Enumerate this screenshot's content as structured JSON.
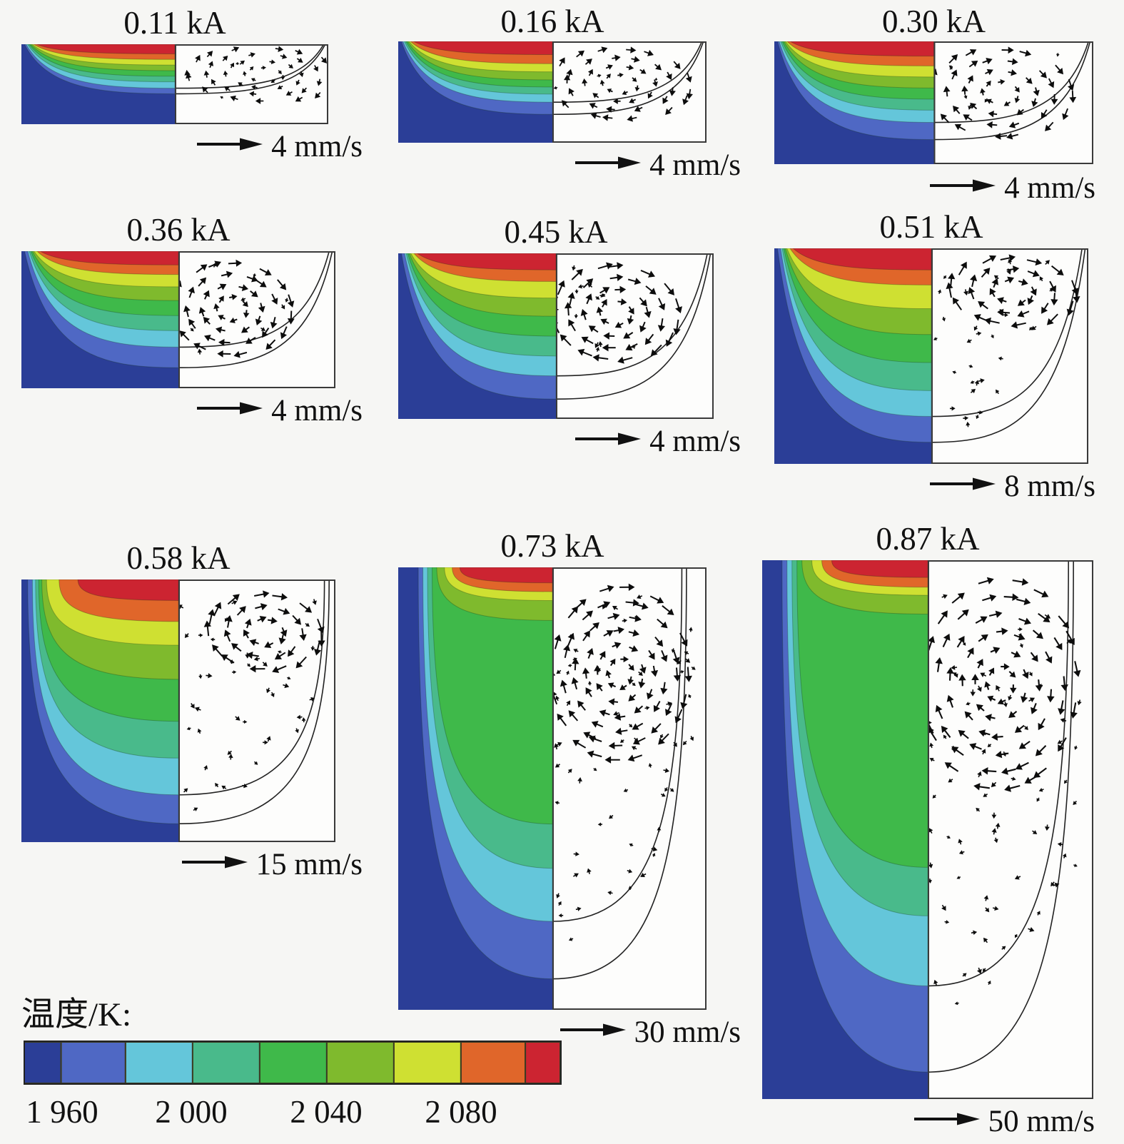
{
  "chart_data": {
    "type": "heatmap",
    "description": "Nine weld-pool panels: left half = temperature contour fill, right half = velocity vector field, each titled with arc current and annotated with a velocity reference arrow.",
    "panels": [
      {
        "label": "0.11 kA",
        "current_kA": 0.11,
        "scale_label": "4 mm/s",
        "velocity_scale_mm_s": 4
      },
      {
        "label": "0.16 kA",
        "current_kA": 0.16,
        "scale_label": "4 mm/s",
        "velocity_scale_mm_s": 4
      },
      {
        "label": "0.30 kA",
        "current_kA": 0.3,
        "scale_label": "4 mm/s",
        "velocity_scale_mm_s": 4
      },
      {
        "label": "0.36 kA",
        "current_kA": 0.36,
        "scale_label": "4 mm/s",
        "velocity_scale_mm_s": 4
      },
      {
        "label": "0.45 kA",
        "current_kA": 0.45,
        "scale_label": "4 mm/s",
        "velocity_scale_mm_s": 4
      },
      {
        "label": "0.51 kA",
        "current_kA": 0.51,
        "scale_label": "8 mm/s",
        "velocity_scale_mm_s": 8
      },
      {
        "label": "0.58 kA",
        "current_kA": 0.58,
        "scale_label": "15 mm/s",
        "velocity_scale_mm_s": 15
      },
      {
        "label": "0.73 kA",
        "current_kA": 0.73,
        "scale_label": "30 mm/s",
        "velocity_scale_mm_s": 30
      },
      {
        "label": "0.87 kA",
        "current_kA": 0.87,
        "scale_label": "50 mm/s",
        "velocity_scale_mm_s": 50
      }
    ],
    "colorbar": {
      "label": "温度/K:",
      "tick_labels": [
        "1 960",
        "2 000",
        "2 040",
        "2 080"
      ],
      "tick_values": [
        1960,
        2000,
        2040,
        2080
      ],
      "segment_step_K": 20,
      "segment_colors": [
        "#2b3e97",
        "#4f68c4",
        "#64c6da",
        "#49ba8b",
        "#3fb94a",
        "#7fba2d",
        "#cfe032",
        "#e0662a",
        "#cc2431"
      ],
      "position": "bottom-left"
    }
  }
}
